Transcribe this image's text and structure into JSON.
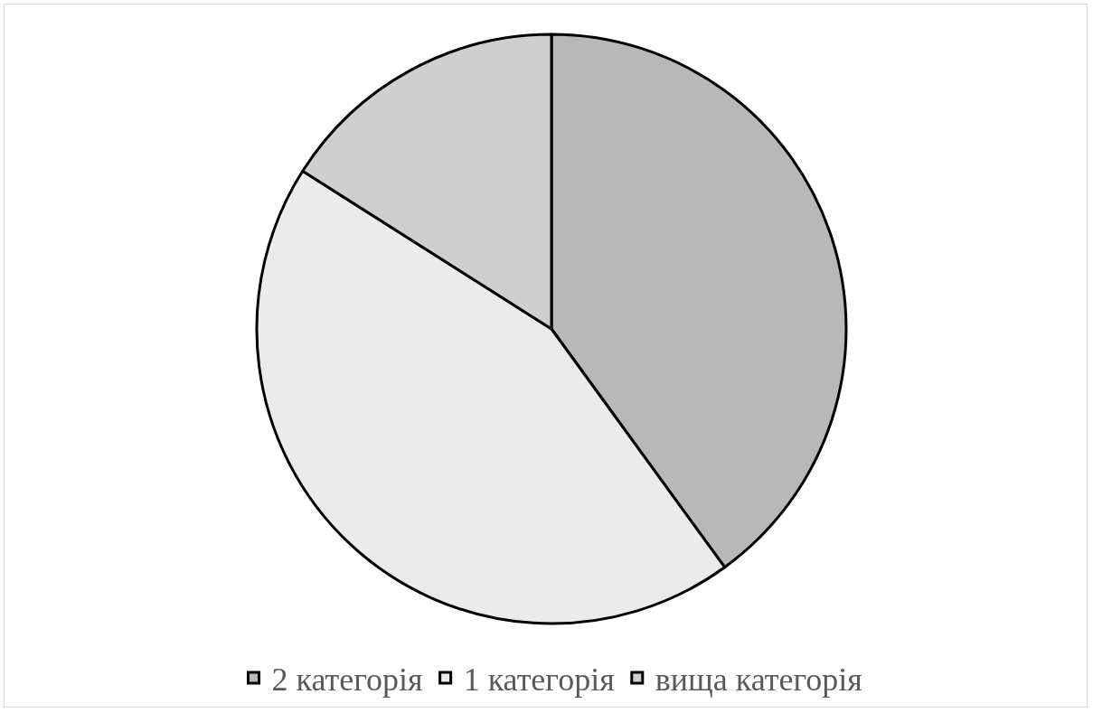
{
  "chart_data": {
    "type": "pie",
    "categories": [
      "2 категорія",
      "1 категорія",
      "вища категорія"
    ],
    "values": [
      40,
      44,
      16
    ],
    "colors": [
      "#b8b8b8",
      "#ebebeb",
      "#cfcfcf"
    ],
    "legend": "bottom"
  }
}
